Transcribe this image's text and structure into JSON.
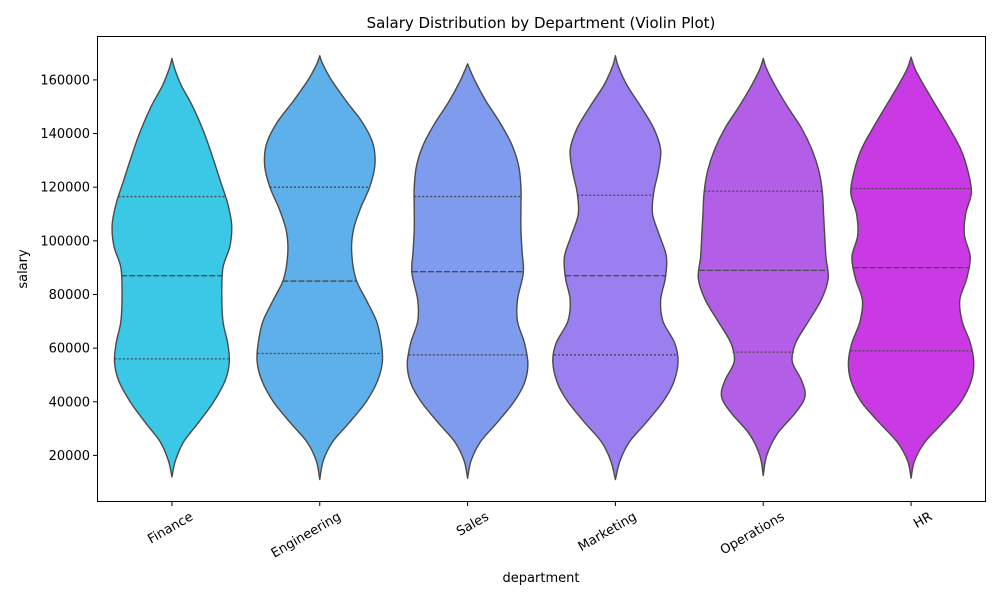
{
  "chart_data": {
    "type": "violin",
    "title": "Salary Distribution by Department (Violin Plot)",
    "xlabel": "department",
    "ylabel": "salary",
    "ylim": [
      3000,
      176000
    ],
    "y_ticks": [
      20000,
      40000,
      60000,
      80000,
      100000,
      120000,
      140000,
      160000
    ],
    "grid": false,
    "inner": "quartile",
    "series": [
      {
        "name": "Finance",
        "color": "#3bc8e7",
        "min": 12000,
        "max": 168000,
        "q1": 56000,
        "median": 87000,
        "q3": 116500,
        "density": [
          [
            12000,
            0
          ],
          [
            18000,
            0.06
          ],
          [
            25000,
            0.2
          ],
          [
            32000,
            0.45
          ],
          [
            40000,
            0.72
          ],
          [
            48000,
            0.92
          ],
          [
            55000,
            0.99
          ],
          [
            62000,
            0.96
          ],
          [
            70000,
            0.88
          ],
          [
            80000,
            0.86
          ],
          [
            90000,
            0.88
          ],
          [
            98000,
            1.0
          ],
          [
            106000,
            1.03
          ],
          [
            114000,
            0.96
          ],
          [
            122000,
            0.84
          ],
          [
            130000,
            0.72
          ],
          [
            140000,
            0.56
          ],
          [
            150000,
            0.36
          ],
          [
            158000,
            0.16
          ],
          [
            164000,
            0.05
          ],
          [
            168000,
            0
          ]
        ]
      },
      {
        "name": "Engineering",
        "color": "#5db0e9",
        "min": 11000,
        "max": 169000,
        "q1": 58000,
        "median": 85000,
        "q3": 120000,
        "density": [
          [
            11000,
            0
          ],
          [
            18000,
            0.06
          ],
          [
            25000,
            0.22
          ],
          [
            32000,
            0.5
          ],
          [
            40000,
            0.8
          ],
          [
            48000,
            1.0
          ],
          [
            55000,
            1.08
          ],
          [
            62000,
            1.06
          ],
          [
            70000,
            0.98
          ],
          [
            78000,
            0.8
          ],
          [
            86000,
            0.62
          ],
          [
            96000,
            0.55
          ],
          [
            104000,
            0.58
          ],
          [
            112000,
            0.7
          ],
          [
            120000,
            0.86
          ],
          [
            128000,
            0.95
          ],
          [
            136000,
            0.92
          ],
          [
            144000,
            0.74
          ],
          [
            152000,
            0.46
          ],
          [
            160000,
            0.2
          ],
          [
            166000,
            0.05
          ],
          [
            169000,
            0
          ]
        ]
      },
      {
        "name": "Sales",
        "color": "#7e9bee",
        "min": 11500,
        "max": 166000,
        "q1": 57500,
        "median": 88500,
        "q3": 116500,
        "density": [
          [
            11500,
            0
          ],
          [
            18000,
            0.06
          ],
          [
            25000,
            0.22
          ],
          [
            32000,
            0.5
          ],
          [
            40000,
            0.8
          ],
          [
            47000,
            0.98
          ],
          [
            54000,
            1.04
          ],
          [
            62000,
            0.98
          ],
          [
            70000,
            0.86
          ],
          [
            78000,
            0.86
          ],
          [
            88000,
            0.96
          ],
          [
            96000,
            0.94
          ],
          [
            104000,
            0.92
          ],
          [
            112000,
            0.92
          ],
          [
            120000,
            0.92
          ],
          [
            128000,
            0.88
          ],
          [
            136000,
            0.76
          ],
          [
            144000,
            0.56
          ],
          [
            152000,
            0.32
          ],
          [
            160000,
            0.12
          ],
          [
            166000,
            0
          ]
        ]
      },
      {
        "name": "Marketing",
        "color": "#9b7ff0",
        "min": 11000,
        "max": 169000,
        "q1": 57500,
        "median": 87000,
        "q3": 117000,
        "density": [
          [
            11000,
            0
          ],
          [
            18000,
            0.08
          ],
          [
            25000,
            0.24
          ],
          [
            32000,
            0.52
          ],
          [
            40000,
            0.82
          ],
          [
            47000,
            1.0
          ],
          [
            55000,
            1.08
          ],
          [
            62000,
            1.02
          ],
          [
            70000,
            0.82
          ],
          [
            78000,
            0.78
          ],
          [
            86000,
            0.86
          ],
          [
            94000,
            0.88
          ],
          [
            102000,
            0.76
          ],
          [
            110000,
            0.64
          ],
          [
            118000,
            0.66
          ],
          [
            126000,
            0.74
          ],
          [
            134000,
            0.78
          ],
          [
            142000,
            0.66
          ],
          [
            150000,
            0.44
          ],
          [
            158000,
            0.2
          ],
          [
            165000,
            0.05
          ],
          [
            169000,
            0
          ]
        ]
      },
      {
        "name": "Operations",
        "color": "#b25ee7",
        "min": 12500,
        "max": 168000,
        "q1": 58500,
        "median": 89000,
        "q3": 118500,
        "density": [
          [
            12500,
            0
          ],
          [
            20000,
            0.06
          ],
          [
            28000,
            0.24
          ],
          [
            36000,
            0.56
          ],
          [
            42000,
            0.72
          ],
          [
            48000,
            0.66
          ],
          [
            55000,
            0.5
          ],
          [
            62000,
            0.56
          ],
          [
            70000,
            0.78
          ],
          [
            78000,
            1.0
          ],
          [
            86000,
            1.12
          ],
          [
            94000,
            1.08
          ],
          [
            102000,
            1.06
          ],
          [
            110000,
            1.04
          ],
          [
            118000,
            1.02
          ],
          [
            126000,
            0.96
          ],
          [
            134000,
            0.84
          ],
          [
            142000,
            0.66
          ],
          [
            150000,
            0.42
          ],
          [
            158000,
            0.2
          ],
          [
            164000,
            0.06
          ],
          [
            168000,
            0
          ]
        ]
      },
      {
        "name": "HR",
        "color": "#c93ae4",
        "min": 11500,
        "max": 168500,
        "q1": 59000,
        "median": 90000,
        "q3": 119500,
        "density": [
          [
            11500,
            0
          ],
          [
            18000,
            0.06
          ],
          [
            25000,
            0.24
          ],
          [
            32000,
            0.54
          ],
          [
            40000,
            0.86
          ],
          [
            48000,
            1.04
          ],
          [
            55000,
            1.08
          ],
          [
            62000,
            1.02
          ],
          [
            70000,
            0.88
          ],
          [
            78000,
            0.84
          ],
          [
            86000,
            0.96
          ],
          [
            94000,
            1.02
          ],
          [
            102000,
            0.92
          ],
          [
            110000,
            0.94
          ],
          [
            118000,
            1.04
          ],
          [
            126000,
            0.98
          ],
          [
            134000,
            0.86
          ],
          [
            142000,
            0.66
          ],
          [
            150000,
            0.44
          ],
          [
            158000,
            0.22
          ],
          [
            164000,
            0.07
          ],
          [
            168500,
            0
          ]
        ]
      }
    ]
  }
}
